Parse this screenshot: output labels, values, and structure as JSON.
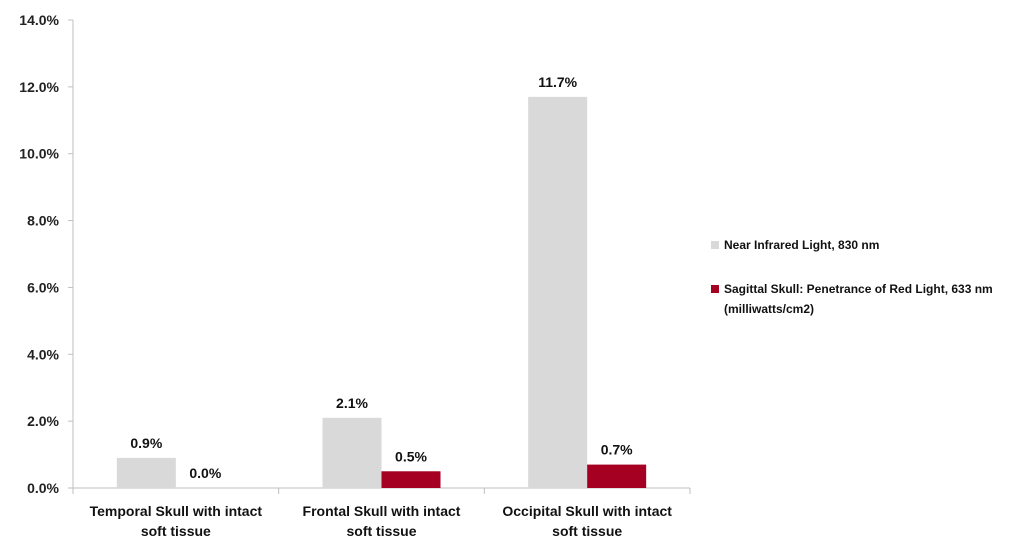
{
  "chart_data": {
    "type": "bar",
    "categories": [
      [
        "Temporal Skull with intact",
        "soft tissue"
      ],
      [
        "Frontal Skull with intact",
        "soft tissue"
      ],
      [
        "Occipital Skull with intact",
        "soft tissue"
      ]
    ],
    "series": [
      {
        "name": "Near Infrared Light, 830 nm",
        "color": "#d9d9d9",
        "values": [
          0.9,
          2.1,
          11.7
        ],
        "labels": [
          "0.9%",
          "2.1%",
          "11.7%"
        ]
      },
      {
        "name": "Sagittal Skull: Penetrance of Red Light, 633 nm",
        "name_line2": "(milliwatts/cm2)",
        "color": "#a50021",
        "values": [
          0.0,
          0.5,
          0.7
        ],
        "labels": [
          "0.0%",
          "0.5%",
          "0.7%"
        ]
      }
    ],
    "y_ticks": [
      "0.0%",
      "2.0%",
      "4.0%",
      "6.0%",
      "8.0%",
      "10.0%",
      "12.0%",
      "14.0%"
    ],
    "ylim": [
      0,
      14
    ],
    "ytick_step": 2,
    "grid": false,
    "legend_position": "right",
    "title": "",
    "xlabel": "",
    "ylabel": ""
  }
}
